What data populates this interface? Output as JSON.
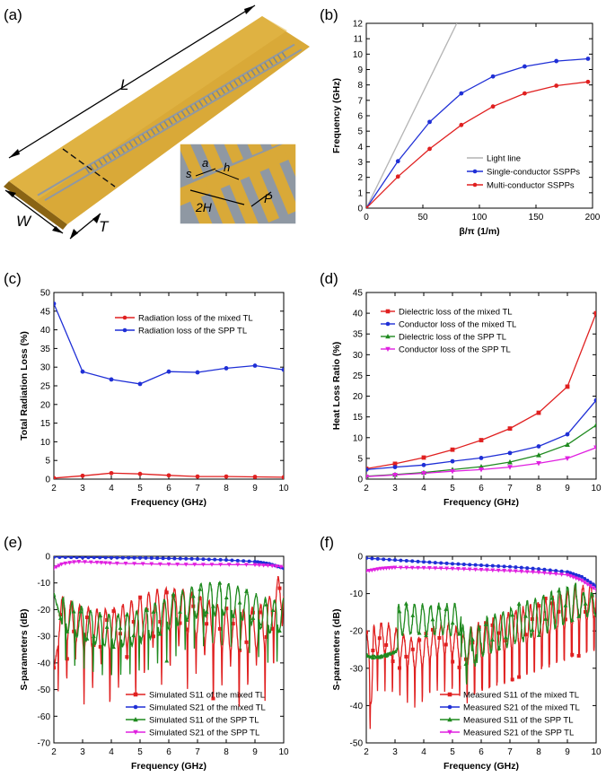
{
  "panel_labels": {
    "a": "(a)",
    "b": "(b)",
    "c": "(c)",
    "d": "(d)",
    "e": "(e)",
    "f": "(f)"
  },
  "photo": {
    "labels": {
      "L": "L",
      "W": "W",
      "T": "T"
    },
    "inset_labels": {
      "s": "s",
      "a": "a",
      "h": "h",
      "twoH": "2H",
      "P": "P"
    },
    "colors": {
      "gold": "#d9a938",
      "gold_dark": "#b9871f",
      "gap": "#8f98a3"
    }
  },
  "chart_data": [
    {
      "id": "b",
      "type": "line",
      "title": "",
      "xlabel": "β/π (1/m)",
      "ylabel": "Frequency (GHz)",
      "xlim": [
        0,
        200
      ],
      "ylim": [
        0,
        12
      ],
      "xticks": [
        0,
        50,
        100,
        150,
        200
      ],
      "yticks": [
        0,
        1,
        2,
        3,
        4,
        5,
        6,
        7,
        8,
        9,
        10,
        11,
        12
      ],
      "legend_position": "bottom-right",
      "series": [
        {
          "name": "Light line",
          "color": "#b4b4b4",
          "marker": "none",
          "x": [
            0,
            80
          ],
          "y": [
            0,
            12
          ]
        },
        {
          "name": "Single-conductor SSPPs",
          "color": "#1f2fd6",
          "marker": "circle",
          "x": [
            0,
            28,
            56,
            84,
            112,
            140,
            168,
            196
          ],
          "y": [
            0,
            3.05,
            5.6,
            7.45,
            8.55,
            9.2,
            9.55,
            9.7
          ]
        },
        {
          "name": "Multi-conductor SSPPs",
          "color": "#e02020",
          "marker": "circle",
          "x": [
            0,
            28,
            56,
            84,
            112,
            140,
            168,
            196
          ],
          "y": [
            0,
            2.05,
            3.85,
            5.4,
            6.6,
            7.45,
            7.95,
            8.2
          ]
        }
      ]
    },
    {
      "id": "c",
      "type": "line",
      "xlabel": "Frequency (GHz)",
      "ylabel": "Total Radiation Loss (%)",
      "xlim": [
        2,
        10
      ],
      "ylim": [
        0,
        50
      ],
      "xticks": [
        2,
        3,
        4,
        5,
        6,
        7,
        8,
        9,
        10
      ],
      "yticks": [
        0,
        5,
        10,
        15,
        20,
        25,
        30,
        35,
        40,
        45,
        50
      ],
      "legend_position": "upper-middle",
      "series": [
        {
          "name": "Radiation loss of the mixed TL",
          "color": "#e02020",
          "marker": "circle",
          "x": [
            2,
            3,
            4,
            5,
            6,
            7,
            8,
            9,
            10
          ],
          "y": [
            0.3,
            0.9,
            1.6,
            1.4,
            1.0,
            0.7,
            0.7,
            0.6,
            0.5
          ]
        },
        {
          "name": "Radiation loss of the SPP TL",
          "color": "#1f2fd6",
          "marker": "circle",
          "x": [
            2,
            3,
            4,
            5,
            6,
            7,
            8,
            9,
            10
          ],
          "y": [
            47,
            28.8,
            26.7,
            25.5,
            28.8,
            28.6,
            29.7,
            30.4,
            29.3
          ]
        }
      ]
    },
    {
      "id": "d",
      "type": "line",
      "xlabel": "Frequency (GHz)",
      "ylabel": "Heat Loss Ratio (%)",
      "xlim": [
        2,
        10
      ],
      "ylim": [
        0,
        45
      ],
      "xticks": [
        2,
        3,
        4,
        5,
        6,
        7,
        8,
        9,
        10
      ],
      "yticks": [
        0,
        5,
        10,
        15,
        20,
        25,
        30,
        35,
        40,
        45
      ],
      "legend_position": "top-left",
      "series": [
        {
          "name": "Dielectric loss of the mixed TL",
          "color": "#e02020",
          "marker": "square",
          "x": [
            2,
            3,
            4,
            5,
            6,
            7,
            8,
            9,
            10
          ],
          "y": [
            2.5,
            3.7,
            5.2,
            7.1,
            9.4,
            12.2,
            16.0,
            22.3,
            40.0
          ]
        },
        {
          "name": "Conductor loss of the mixed TL",
          "color": "#1f2fd6",
          "marker": "circle",
          "x": [
            2,
            3,
            4,
            5,
            6,
            7,
            8,
            9,
            10
          ],
          "y": [
            2.3,
            2.9,
            3.4,
            4.3,
            5.1,
            6.3,
            7.9,
            10.8,
            19.0
          ]
        },
        {
          "name": "Dielectric loss of the SPP TL",
          "color": "#1f8a1f",
          "marker": "triangle",
          "x": [
            2,
            3,
            4,
            5,
            6,
            7,
            8,
            9,
            10
          ],
          "y": [
            0.7,
            1.1,
            1.6,
            2.3,
            3.0,
            4.1,
            5.8,
            8.3,
            13.0
          ]
        },
        {
          "name": "Conductor loss of the SPP TL",
          "color": "#e020e0",
          "marker": "triangle-down",
          "x": [
            2,
            3,
            4,
            5,
            6,
            7,
            8,
            9,
            10
          ],
          "y": [
            0.6,
            1.0,
            1.4,
            1.9,
            2.3,
            2.9,
            3.8,
            5.0,
            7.6
          ]
        }
      ]
    },
    {
      "id": "e",
      "type": "line",
      "xlabel": "Frequency (GHz)",
      "ylabel": "S-parameters (dB)",
      "xlim": [
        2,
        10
      ],
      "ylim": [
        -70,
        0
      ],
      "xticks": [
        2,
        3,
        4,
        5,
        6,
        7,
        8,
        9,
        10
      ],
      "yticks": [
        -70,
        -60,
        -50,
        -40,
        -30,
        -20,
        -10,
        0
      ],
      "legend_position": "bottom-right",
      "series": [
        {
          "name": "Simulated S11 of the mixed TL",
          "color": "#e02020",
          "marker": "square",
          "shape": "mixed_s11",
          "seed": 11
        },
        {
          "name": "Simulated S21 of the mixed TL",
          "color": "#1f2fd6",
          "marker": "circle",
          "shape": "s21",
          "x": [
            2,
            3,
            4,
            5,
            6,
            7,
            8,
            9,
            9.5,
            10
          ],
          "y": [
            -0.3,
            -0.4,
            -0.5,
            -0.6,
            -0.8,
            -1.0,
            -1.4,
            -2.0,
            -2.8,
            -4.5
          ]
        },
        {
          "name": "Simulated S11 of the SPP TL",
          "color": "#1f8a1f",
          "marker": "triangle",
          "shape": "spp_s11",
          "seed": 23
        },
        {
          "name": "Simulated S21 of the SPP TL",
          "color": "#e020e0",
          "marker": "triangle-down",
          "shape": "s21",
          "x": [
            2,
            2.3,
            2.8,
            3.5,
            4,
            5,
            6,
            7,
            8,
            9,
            9.5,
            10
          ],
          "y": [
            -4.5,
            -2.8,
            -2.0,
            -2.3,
            -2.6,
            -2.8,
            -3.0,
            -3.1,
            -3.1,
            -3.2,
            -3.5,
            -4.0
          ]
        }
      ]
    },
    {
      "id": "f",
      "type": "line",
      "xlabel": "Frequency (GHz)",
      "ylabel": "S-parameters (dB)",
      "xlim": [
        2,
        10
      ],
      "ylim": [
        -50,
        0
      ],
      "xticks": [
        2,
        3,
        4,
        5,
        6,
        7,
        8,
        9,
        10
      ],
      "yticks": [
        -50,
        -40,
        -30,
        -20,
        -10,
        0
      ],
      "legend_position": "bottom-right",
      "series": [
        {
          "name": "Measured S11 of the mixed TL",
          "color": "#e02020",
          "marker": "square",
          "shape": "meas_mixed_s11",
          "seed": 37
        },
        {
          "name": "Measured S21 of the mixed TL",
          "color": "#1f2fd6",
          "marker": "circle",
          "shape": "s21",
          "x": [
            2,
            3,
            4,
            5,
            6,
            7,
            8,
            9,
            9.5,
            10
          ],
          "y": [
            -0.5,
            -1.0,
            -1.5,
            -2.0,
            -2.4,
            -2.8,
            -3.4,
            -4.2,
            -5.5,
            -8.0
          ]
        },
        {
          "name": "Measured S11 of the SPP TL",
          "color": "#1f8a1f",
          "marker": "triangle",
          "shape": "meas_spp_s11",
          "seed": 53
        },
        {
          "name": "Measured S21 of the SPP TL",
          "color": "#e020e0",
          "marker": "triangle-down",
          "shape": "s21",
          "x": [
            2,
            2.5,
            3,
            4,
            5,
            6,
            7,
            8,
            9,
            9.5,
            10
          ],
          "y": [
            -4.0,
            -3.3,
            -3.0,
            -3.1,
            -3.3,
            -3.6,
            -3.9,
            -4.3,
            -5.0,
            -6.5,
            -9.0
          ]
        }
      ]
    }
  ]
}
